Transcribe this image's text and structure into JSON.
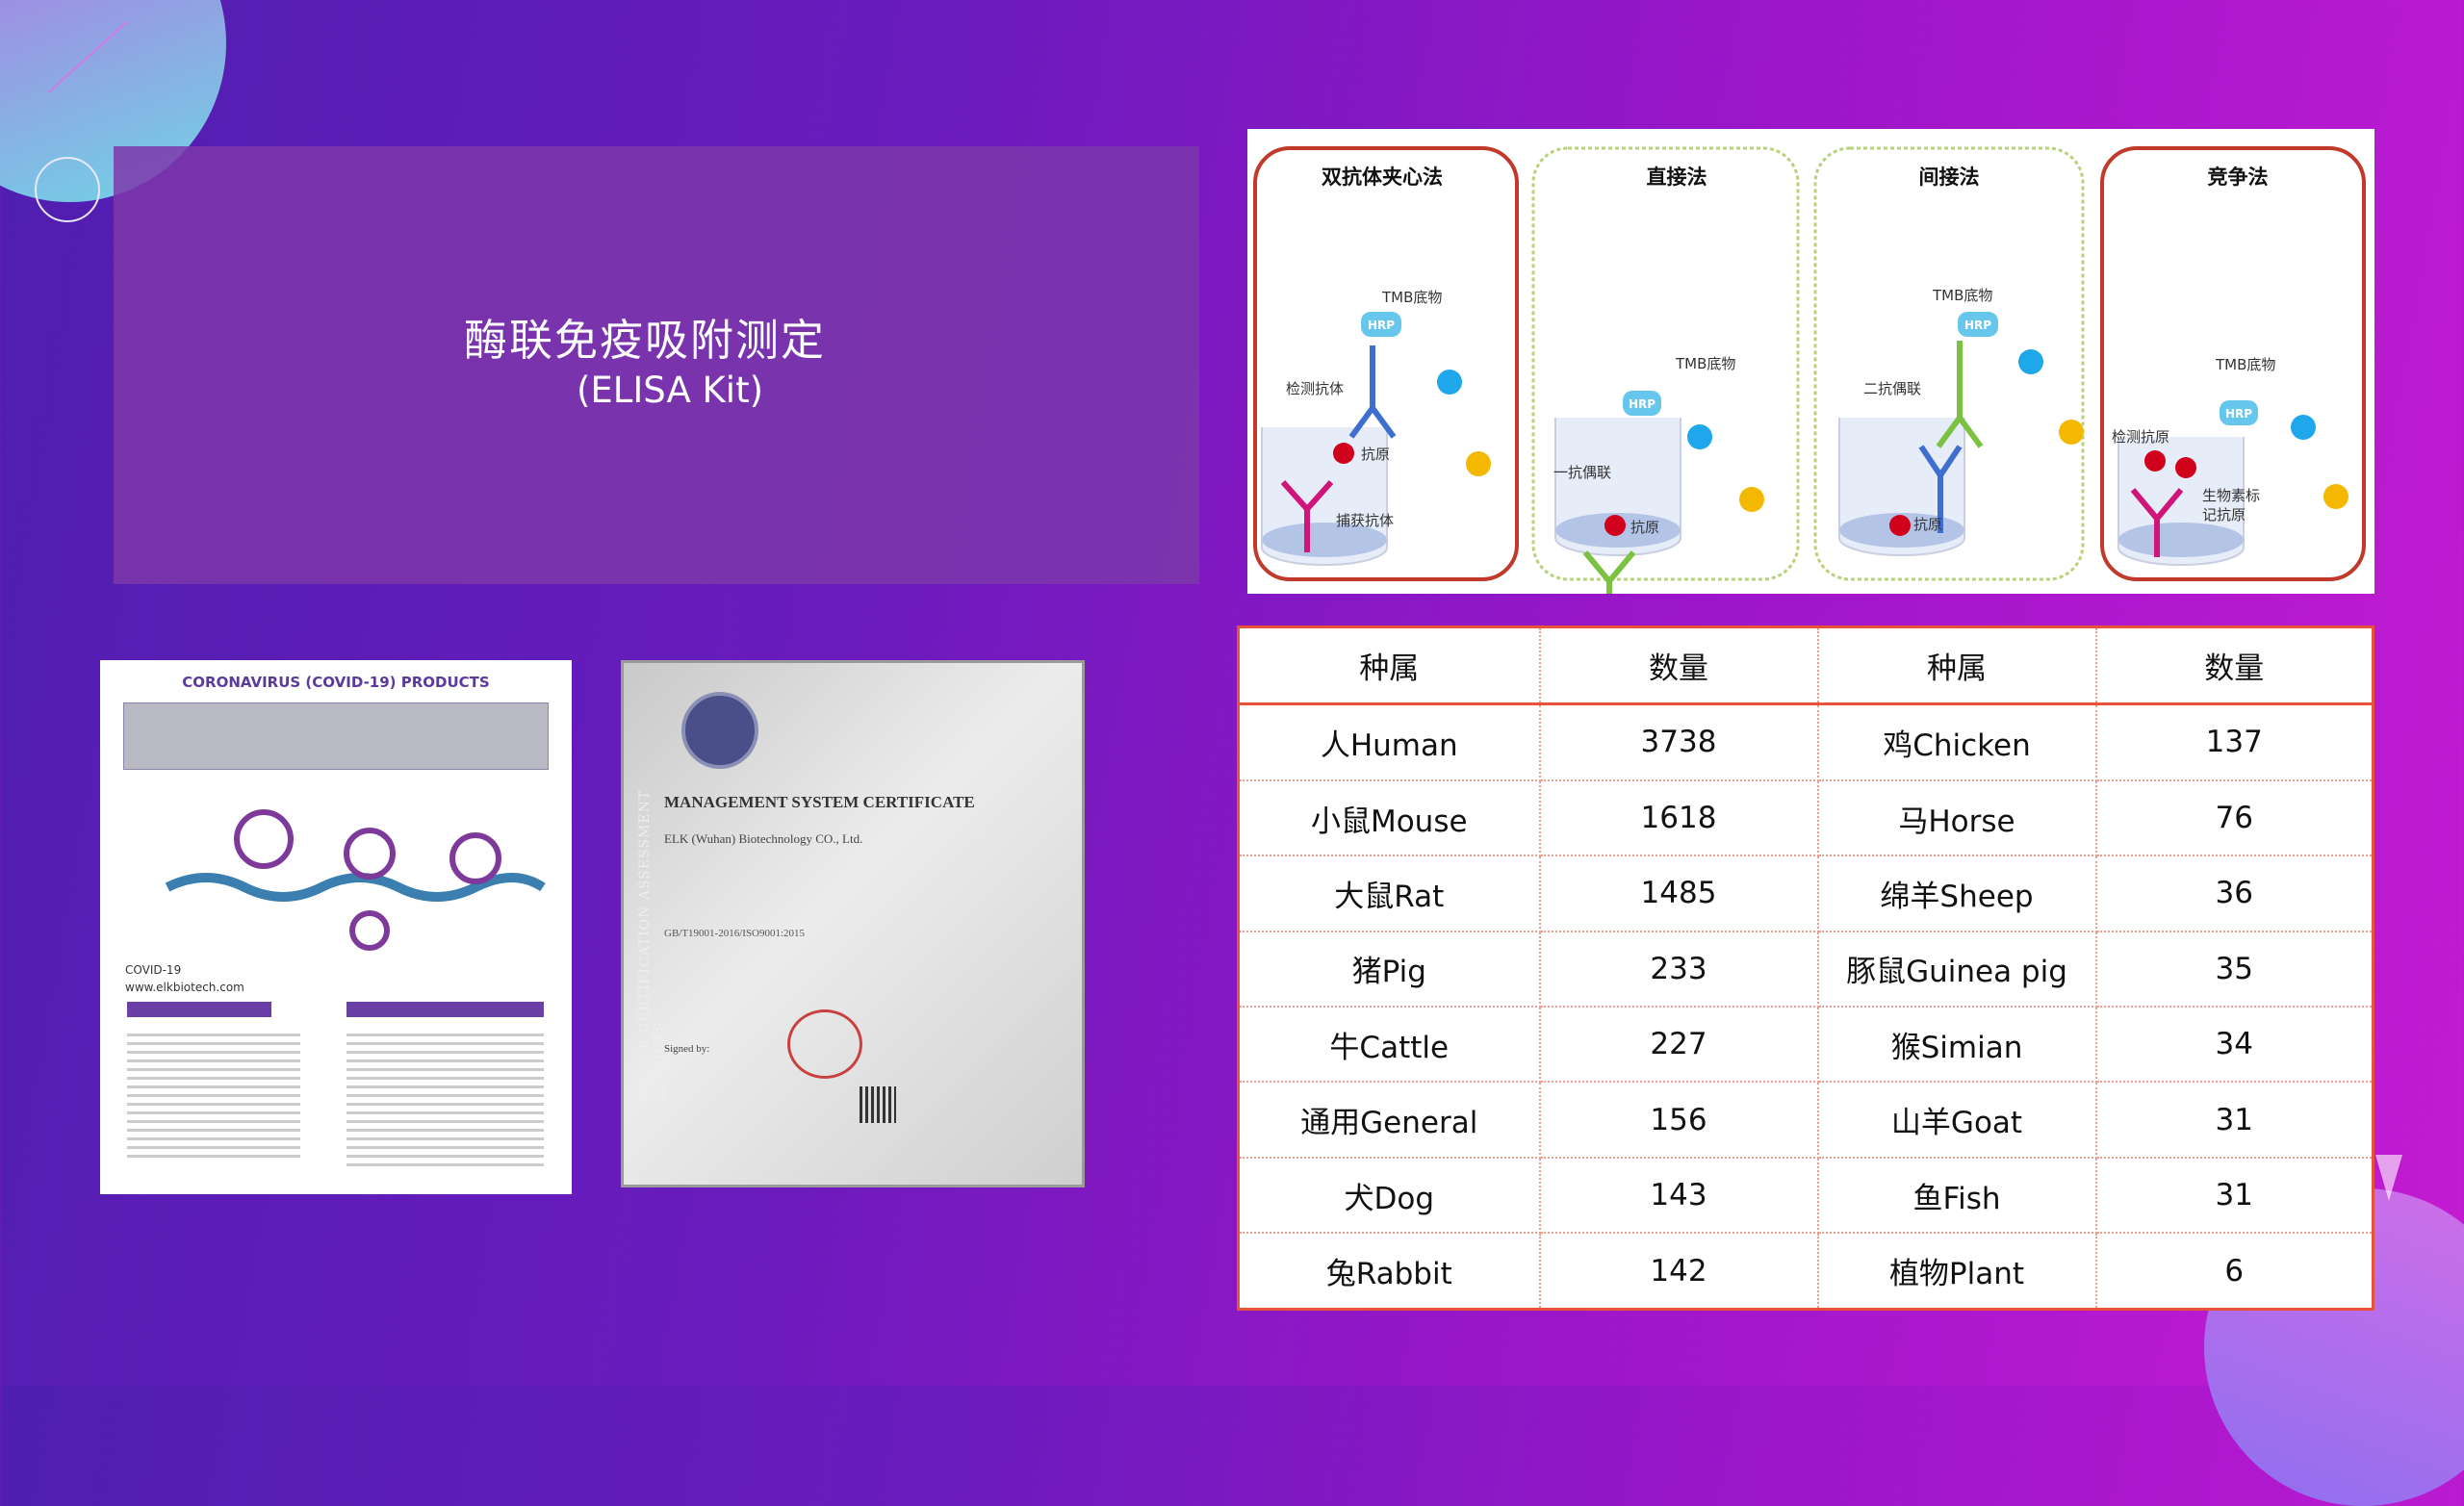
{
  "title": {
    "main": "酶联免疫吸附测定",
    "sub": "(ELISA  Kit)"
  },
  "diagram": {
    "methods": [
      "双抗体夹心法",
      "直接法",
      "间接法",
      "竞争法"
    ],
    "labels": {
      "tmb": "TMB底物",
      "hrp": "HRP",
      "detect_ab": "检测抗体",
      "antigen": "抗原",
      "capture_ab": "捕获抗体",
      "primary_conj": "一抗偶联",
      "secondary_conj": "二抗偶联",
      "detect_ag": "检测抗原",
      "biotin_ag_1": "生物素标",
      "biotin_ag_2": "记抗原"
    },
    "colors": {
      "sandwich_border": "#c0392b",
      "direct_border": "#b8d27a",
      "antigen": "#d0021b",
      "substrate_blue": "#1ea7ea",
      "substrate_yellow": "#f5b800"
    }
  },
  "doc": {
    "title": "CORONAVIRUS (COVID-19) PRODUCTS",
    "brand": "COVID-19",
    "url": "www.elkbiotech.com"
  },
  "cert": {
    "title": "MANAGEMENT SYSTEM CERTIFICATE",
    "company": "ELK (Wuhan) Biotechnology CO., Ltd.",
    "standard": "GB/T19001-2016/ISO9001:2015",
    "side": "INGEER CERTIFICATION ASSESSMENT SERVICES",
    "signed": "Signed by:"
  },
  "table": {
    "headers": [
      "种属",
      "数量",
      "种属",
      "数量"
    ],
    "rows": [
      [
        "人Human",
        "3738",
        "鸡Chicken",
        "137"
      ],
      [
        "小鼠Mouse",
        "1618",
        "马Horse",
        "76"
      ],
      [
        "大鼠Rat",
        "1485",
        "绵羊Sheep",
        "36"
      ],
      [
        "猪Pig",
        "233",
        "豚鼠Guinea pig",
        "35"
      ],
      [
        "牛Cattle",
        "227",
        "猴Simian",
        "34"
      ],
      [
        "通用General",
        "156",
        "山羊Goat",
        "31"
      ],
      [
        "犬Dog",
        "143",
        "鱼Fish",
        "31"
      ],
      [
        "兔Rabbit",
        "142",
        "植物Plant",
        "6"
      ]
    ]
  }
}
